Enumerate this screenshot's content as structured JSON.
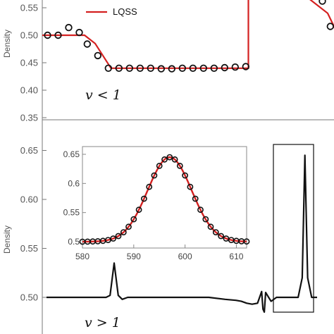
{
  "chart_data": [
    {
      "type": "line",
      "panel": "top",
      "ylabel": "Density",
      "ylim": [
        0.35,
        0.57
      ],
      "yticks": [
        "0.35",
        "0.40",
        "0.45",
        "0.50",
        "0.55"
      ],
      "annotation": "v < 1",
      "legend": {
        "label": "LQSS",
        "color": "#d42020",
        "position": "top"
      },
      "series": [
        {
          "name": "LQSS",
          "style": "line",
          "color": "#d42020",
          "points": [
            [
              0,
              0.5
            ],
            [
              0.16,
              0.5
            ],
            [
              0.2,
              0.485
            ],
            [
              0.26,
              0.44
            ],
            [
              0.78,
              0.44
            ],
            [
              0.78,
              0.57
            ],
            [
              1.0,
              0.57
            ],
            [
              1.08,
              0.54
            ],
            [
              1.11,
              0.51
            ],
            [
              1.12,
              0.5
            ],
            [
              1.17,
              0.5
            ]
          ]
        },
        {
          "style": "markers",
          "color": "#111111",
          "points": [
            [
              0.02,
              0.5
            ],
            [
              0.06,
              0.5
            ],
            [
              0.1,
              0.514
            ],
            [
              0.14,
              0.505
            ],
            [
              0.17,
              0.484
            ],
            [
              0.21,
              0.463
            ],
            [
              0.25,
              0.44
            ],
            [
              0.29,
              0.44
            ],
            [
              0.33,
              0.44
            ],
            [
              0.37,
              0.44
            ],
            [
              0.41,
              0.44
            ],
            [
              0.45,
              0.439
            ],
            [
              0.49,
              0.439
            ],
            [
              0.53,
              0.44
            ],
            [
              0.57,
              0.44
            ],
            [
              0.61,
              0.44
            ],
            [
              0.65,
              0.44
            ],
            [
              0.69,
              0.441
            ],
            [
              0.73,
              0.442
            ],
            [
              0.77,
              0.443
            ],
            [
              1.06,
              0.562
            ],
            [
              1.09,
              0.516
            ],
            [
              1.13,
              0.5
            ]
          ]
        }
      ]
    },
    {
      "type": "line",
      "panel": "bottom",
      "ylabel": "Density",
      "ylim": [
        0.485,
        0.67
      ],
      "yticks": [
        "0.50",
        "0.55",
        "0.60",
        "0.65"
      ],
      "annotation": "v > 1",
      "series": [
        {
          "style": "line",
          "color": "#111111",
          "points": [
            [
              0,
              0.5
            ],
            [
              0.22,
              0.5
            ],
            [
              0.235,
              0.502
            ],
            [
              0.25,
              0.535
            ],
            [
              0.265,
              0.502
            ],
            [
              0.28,
              0.498
            ],
            [
              0.3,
              0.5
            ],
            [
              0.6,
              0.5
            ],
            [
              0.66,
              0.498
            ],
            [
              0.7,
              0.497
            ],
            [
              0.72,
              0.496
            ],
            [
              0.74,
              0.494
            ],
            [
              0.76,
              0.493
            ],
            [
              0.78,
              0.494
            ],
            [
              0.795,
              0.506
            ],
            [
              0.8,
              0.488
            ],
            [
              0.805,
              0.485
            ],
            [
              0.81,
              0.505
            ],
            [
              0.83,
              0.496
            ],
            [
              0.85,
              0.5
            ],
            [
              0.93,
              0.5
            ],
            [
              0.945,
              0.52
            ],
            [
              0.955,
              0.645
            ],
            [
              0.965,
              0.52
            ],
            [
              0.98,
              0.5
            ],
            [
              1.0,
              0.5
            ]
          ]
        }
      ],
      "inset": {
        "xlim": [
          580,
          612
        ],
        "ylim": [
          0.5,
          0.66
        ],
        "xticks": [
          "580",
          "590",
          "600",
          "610"
        ],
        "yticks": [
          "0.5",
          "0.55",
          "0.6",
          "0.65"
        ],
        "gaussian": {
          "center": 597,
          "sigma": 4.3,
          "base": 0.5,
          "peak": 0.645
        },
        "marker_x": [
          580,
          581,
          582,
          583,
          584,
          585,
          586,
          587,
          588,
          589,
          590,
          591,
          592,
          593,
          594,
          595,
          596,
          597,
          598,
          599,
          600,
          601,
          602,
          603,
          604,
          605,
          606,
          607,
          608,
          609,
          610,
          611,
          612
        ]
      }
    }
  ]
}
